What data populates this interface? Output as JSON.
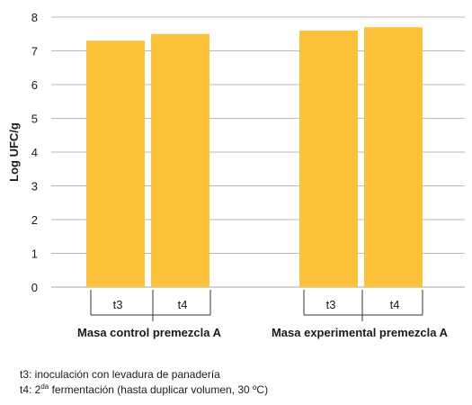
{
  "chart_data": {
    "type": "bar",
    "ylabel": "Log UFC/g",
    "ylim": [
      0,
      8
    ],
    "yticks": [
      "0",
      "1",
      "2",
      "3",
      "4",
      "5",
      "6",
      "7",
      "8"
    ],
    "grid": true,
    "bar_color": "#FDC13A",
    "grid_color": "#b8b8b8",
    "groups": [
      {
        "name": "Masa control premezcla A",
        "bars": [
          {
            "label": "t3",
            "value": 7.3
          },
          {
            "label": "t4",
            "value": 7.5
          }
        ]
      },
      {
        "name": "Masa experimental premezcla A",
        "bars": [
          {
            "label": "t3",
            "value": 7.6
          },
          {
            "label": "t4",
            "value": 7.7
          }
        ]
      }
    ]
  },
  "notes": {
    "t3": "t3: inoculación con levadura de panadería",
    "t4_prefix": "t4: 2",
    "t4_sup": "da",
    "t4_rest": " fermentación (hasta duplicar volumen, 30 ºC)"
  }
}
